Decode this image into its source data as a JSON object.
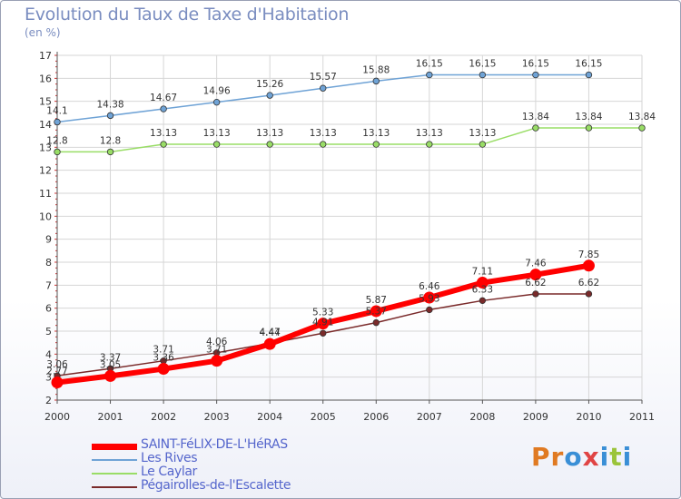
{
  "header": {
    "title": "Evolution du Taux de Taxe d'Habitation",
    "subtitle": "(en %)"
  },
  "logo": {
    "text": "Proxiti",
    "colors": [
      "#e07a22",
      "#e07a22",
      "#3a8fd6",
      "#e04444",
      "#3a8fd6",
      "#9bc43a",
      "#3a8fd6"
    ]
  },
  "chart_data": {
    "type": "line",
    "x": [
      2000,
      2001,
      2002,
      2003,
      2004,
      2005,
      2006,
      2007,
      2008,
      2009,
      2010,
      2011
    ],
    "xlim": [
      2000,
      2011
    ],
    "ylim": [
      2,
      17
    ],
    "y_ticks": [
      2,
      3,
      4,
      5,
      6,
      7,
      8,
      9,
      10,
      11,
      12,
      13,
      14,
      15,
      16,
      17
    ],
    "grid": true,
    "legend_position": "bottom-left",
    "series": [
      {
        "name": "SAINT-FéLIX-DE-L'HéRAS",
        "color": "#ff0000",
        "width": 6,
        "x": [
          2000,
          2001,
          2002,
          2003,
          2004,
          2005,
          2006,
          2007,
          2008,
          2009,
          2010
        ],
        "values": [
          2.77,
          3.05,
          3.36,
          3.71,
          4.44,
          5.33,
          5.87,
          6.46,
          7.11,
          7.46,
          7.85
        ],
        "labels": [
          "2.77",
          "3.05",
          "3.36",
          "3.71",
          "4.44",
          "5.33",
          "5.87",
          "6.46",
          "7.11",
          "7.46",
          "7.85"
        ]
      },
      {
        "name": "Les Rives",
        "color": "#6fa3d6",
        "width": 1.5,
        "x": [
          2000,
          2001,
          2002,
          2003,
          2004,
          2005,
          2006,
          2007,
          2008,
          2009,
          2010
        ],
        "values": [
          14.1,
          14.38,
          14.67,
          14.96,
          15.26,
          15.57,
          15.88,
          16.15,
          16.15,
          16.15,
          16.15
        ],
        "labels": [
          "14.1",
          "14.38",
          "14.67",
          "14.96",
          "15.26",
          "15.57",
          "15.88",
          "16.15",
          "16.15",
          "16.15",
          "16.15"
        ]
      },
      {
        "name": "Le Caylar",
        "color": "#99dd66",
        "width": 1.5,
        "x": [
          2000,
          2001,
          2002,
          2003,
          2004,
          2005,
          2006,
          2007,
          2008,
          2009,
          2010,
          2011
        ],
        "values": [
          12.8,
          12.8,
          13.13,
          13.13,
          13.13,
          13.13,
          13.13,
          13.13,
          13.13,
          13.84,
          13.84,
          13.84
        ],
        "labels": [
          "12.8",
          "12.8",
          "13.13",
          "13.13",
          "13.13",
          "13.13",
          "13.13",
          "13.13",
          "13.13",
          "13.84",
          "13.84",
          "13.84"
        ]
      },
      {
        "name": "Pégairolles-de-l'Escalette",
        "color": "#7a2a2a",
        "width": 1.5,
        "x": [
          2000,
          2001,
          2002,
          2003,
          2004,
          2005,
          2006,
          2007,
          2008,
          2009,
          2010
        ],
        "values": [
          3.06,
          3.37,
          3.71,
          4.06,
          4.47,
          4.91,
          5.37,
          5.93,
          6.33,
          6.62,
          6.62
        ],
        "labels": [
          "3.06",
          "3.37",
          "3.71",
          "4.06",
          "4.47",
          "4.91",
          "5.37",
          "5.93",
          "6.33",
          "6.62",
          "6.62"
        ]
      }
    ]
  }
}
